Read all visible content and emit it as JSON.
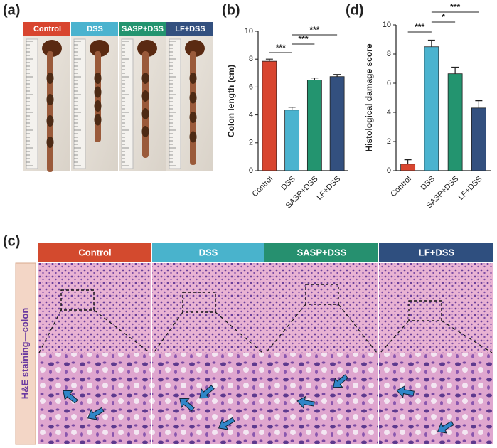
{
  "panel_labels": [
    "(a)",
    "(b)",
    "(c)",
    "(d)"
  ],
  "photo_headers": [
    {
      "text": "Control",
      "color": "#d8452f"
    },
    {
      "text": "DSS",
      "color": "#4bb3cf"
    },
    {
      "text": "SASP+DSS",
      "color": "#23946f"
    },
    {
      "text": "LF+DSS",
      "color": "#33507f"
    }
  ],
  "chart_data": [
    {
      "type": "bar",
      "y_label": "Colon length (cm)",
      "categories": [
        "Control",
        "DSS",
        "SASP+DSS",
        "LF+DSS"
      ],
      "values": [
        7.85,
        4.35,
        6.5,
        6.75
      ],
      "errors": [
        0.15,
        0.2,
        0.15,
        0.15
      ],
      "colors": [
        "#d8452f",
        "#4bb3cf",
        "#23946f",
        "#33507f"
      ],
      "ylim": [
        0,
        10
      ],
      "yticks": [
        0,
        2,
        4,
        6,
        8,
        10
      ],
      "annotations": [
        "***",
        "***",
        "***"
      ]
    },
    {
      "type": "bar",
      "y_label": "Histological damage score",
      "categories": [
        "Control",
        "DSS",
        "SASP+DSS",
        "LF+DSS"
      ],
      "values": [
        0.45,
        8.5,
        6.65,
        4.3
      ],
      "errors": [
        0.3,
        0.45,
        0.45,
        0.5
      ],
      "colors": [
        "#d8452f",
        "#4bb3cf",
        "#23946f",
        "#33507f"
      ],
      "ylim": [
        0,
        10
      ],
      "yticks": [
        0,
        2,
        4,
        6,
        8,
        10
      ],
      "annotations": [
        "***",
        "*",
        "***"
      ]
    }
  ],
  "histology": {
    "side_label": "H&E staining—colon",
    "headers": [
      {
        "text": "Control",
        "color": "#d34a2e"
      },
      {
        "text": "DSS",
        "color": "#49b3cc"
      },
      {
        "text": "SASP+DSS",
        "color": "#26906f"
      },
      {
        "text": "LF+DSS",
        "color": "#2f4f7f"
      }
    ]
  }
}
